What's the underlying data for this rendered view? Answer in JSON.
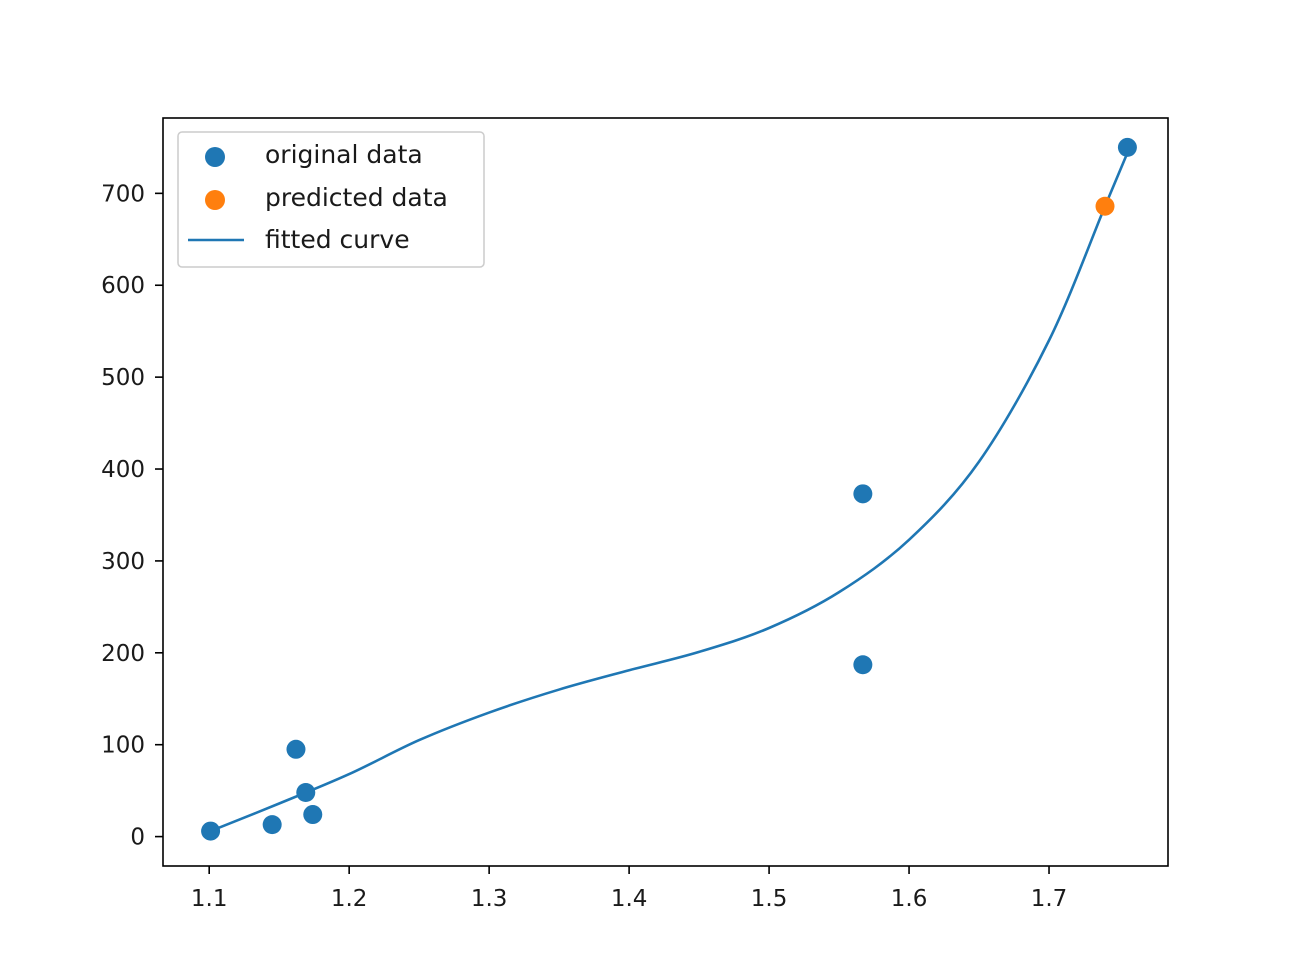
{
  "chart_data": {
    "type": "scatter",
    "title": "",
    "xlabel": "",
    "ylabel": "",
    "xlim": [
      1.067,
      1.785
    ],
    "ylim": [
      -32,
      782
    ],
    "x_ticks": [
      1.1,
      1.2,
      1.3,
      1.4,
      1.5,
      1.6,
      1.7
    ],
    "x_tick_labels": [
      "1.1",
      "1.2",
      "1.3",
      "1.4",
      "1.5",
      "1.6",
      "1.7"
    ],
    "y_ticks": [
      0,
      100,
      200,
      300,
      400,
      500,
      600,
      700
    ],
    "y_tick_labels": [
      "0",
      "100",
      "200",
      "300",
      "400",
      "500",
      "600",
      "700"
    ],
    "grid": false,
    "legend_position": "top-left",
    "series": [
      {
        "name": "original data",
        "kind": "scatter",
        "color": "#1f77b4",
        "points": [
          {
            "x": 1.101,
            "y": 6
          },
          {
            "x": 1.145,
            "y": 13
          },
          {
            "x": 1.162,
            "y": 95
          },
          {
            "x": 1.169,
            "y": 48
          },
          {
            "x": 1.174,
            "y": 24
          },
          {
            "x": 1.567,
            "y": 373
          },
          {
            "x": 1.567,
            "y": 187
          },
          {
            "x": 1.756,
            "y": 750
          }
        ]
      },
      {
        "name": "predicted data",
        "kind": "scatter",
        "color": "#ff7f0e",
        "points": [
          {
            "x": 1.74,
            "y": 686
          }
        ]
      },
      {
        "name": "fitted curve",
        "kind": "line",
        "color": "#1f77b4",
        "points": [
          {
            "x": 1.101,
            "y": 6
          },
          {
            "x": 1.15,
            "y": 36
          },
          {
            "x": 1.2,
            "y": 68
          },
          {
            "x": 1.25,
            "y": 105
          },
          {
            "x": 1.3,
            "y": 135
          },
          {
            "x": 1.35,
            "y": 160
          },
          {
            "x": 1.4,
            "y": 181
          },
          {
            "x": 1.45,
            "y": 201
          },
          {
            "x": 1.5,
            "y": 227
          },
          {
            "x": 1.55,
            "y": 266
          },
          {
            "x": 1.6,
            "y": 323
          },
          {
            "x": 1.65,
            "y": 408
          },
          {
            "x": 1.7,
            "y": 540
          },
          {
            "x": 1.74,
            "y": 686
          },
          {
            "x": 1.756,
            "y": 744
          }
        ]
      }
    ]
  }
}
